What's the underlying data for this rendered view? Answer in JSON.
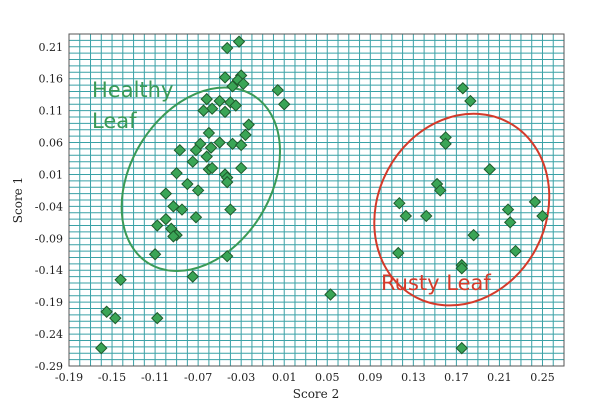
{
  "chart_data": {
    "type": "scatter",
    "xlabel": "Score 2",
    "ylabel": "Score 1",
    "xlim": [
      -0.19,
      0.27
    ],
    "ylim": [
      -0.29,
      0.23
    ],
    "x_ticks": [
      -0.19,
      -0.15,
      -0.11,
      -0.07,
      -0.03,
      0.01,
      0.05,
      0.09,
      0.13,
      0.17,
      0.21,
      0.25
    ],
    "y_ticks": [
      0.21,
      0.16,
      0.11,
      0.06,
      0.01,
      -0.04,
      -0.09,
      -0.14,
      -0.19,
      -0.24,
      -0.29
    ],
    "x_tick_labels": [
      "-0.19",
      "-0.15",
      "-0.11",
      "-0.07",
      "-0.03",
      "0.01",
      "0.05",
      "0.09",
      "0.13",
      "0.17",
      "0.21",
      "0.25"
    ],
    "y_tick_labels": [
      "0.21",
      "0.16",
      "0.11",
      "0.06",
      "0.01",
      "-0.04",
      "-0.09",
      "-0.14",
      "-0.19",
      "-0.24",
      "-0.29"
    ],
    "grid": true,
    "colors": {
      "point_fill": "#3aa556",
      "point_stroke": "#1e5a2c",
      "grid": "#3aa1a6",
      "healthy": "#3a9a56",
      "rusty": "#d43a2a"
    },
    "groups": [
      {
        "label_line1": "Healthy",
        "label_line2": "Leaf",
        "color": "#3a9a56",
        "ellipse": {
          "cx": -0.0675,
          "cy": 0.0025,
          "rx": 0.065,
          "ry": 0.155,
          "rotation_deg": 32
        }
      },
      {
        "label_line1": "Rusty Leaf",
        "label_line2": "",
        "color": "#d43a2a",
        "ellipse": {
          "cx": 0.175,
          "cy": -0.045,
          "rx": 0.078,
          "ry": 0.155,
          "rotation_deg": 28
        }
      }
    ],
    "points": [
      [
        -0.032,
        0.218
      ],
      [
        -0.043,
        0.208
      ],
      [
        -0.03,
        0.165
      ],
      [
        -0.045,
        0.162
      ],
      [
        -0.033,
        0.158
      ],
      [
        -0.028,
        0.152
      ],
      [
        -0.038,
        0.148
      ],
      [
        0.004,
        0.142
      ],
      [
        -0.062,
        0.128
      ],
      [
        -0.05,
        0.125
      ],
      [
        -0.04,
        0.123
      ],
      [
        0.01,
        0.12
      ],
      [
        -0.035,
        0.118
      ],
      [
        -0.057,
        0.113
      ],
      [
        -0.065,
        0.11
      ],
      [
        -0.045,
        0.108
      ],
      [
        -0.023,
        0.088
      ],
      [
        -0.026,
        0.072
      ],
      [
        -0.06,
        0.075
      ],
      [
        -0.05,
        0.06
      ],
      [
        -0.068,
        0.058
      ],
      [
        -0.038,
        0.058
      ],
      [
        -0.058,
        0.052
      ],
      [
        -0.072,
        0.048
      ],
      [
        -0.03,
        0.056
      ],
      [
        -0.062,
        0.038
      ],
      [
        -0.087,
        0.048
      ],
      [
        -0.075,
        0.03
      ],
      [
        -0.09,
        0.012
      ],
      [
        -0.06,
        0.018
      ],
      [
        -0.057,
        0.02
      ],
      [
        -0.03,
        0.02
      ],
      [
        -0.045,
        0.01
      ],
      [
        -0.043,
        0.005
      ],
      [
        -0.043,
        -0.002
      ],
      [
        -0.08,
        -0.005
      ],
      [
        -0.07,
        -0.015
      ],
      [
        -0.1,
        -0.02
      ],
      [
        -0.093,
        -0.04
      ],
      [
        -0.085,
        -0.045
      ],
      [
        -0.04,
        -0.045
      ],
      [
        -0.072,
        -0.057
      ],
      [
        -0.1,
        -0.06
      ],
      [
        -0.108,
        -0.07
      ],
      [
        -0.095,
        -0.075
      ],
      [
        -0.09,
        -0.085
      ],
      [
        -0.093,
        -0.087
      ],
      [
        -0.11,
        -0.115
      ],
      [
        -0.043,
        -0.118
      ],
      [
        -0.075,
        -0.15
      ],
      [
        -0.142,
        -0.155
      ],
      [
        -0.155,
        -0.205
      ],
      [
        -0.147,
        -0.215
      ],
      [
        -0.108,
        -0.215
      ],
      [
        -0.16,
        -0.262
      ],
      [
        0.053,
        -0.178
      ],
      [
        0.176,
        0.145
      ],
      [
        0.183,
        0.125
      ],
      [
        0.16,
        0.068
      ],
      [
        0.16,
        0.058
      ],
      [
        0.201,
        0.018
      ],
      [
        0.152,
        -0.005
      ],
      [
        0.155,
        -0.015
      ],
      [
        0.117,
        -0.035
      ],
      [
        0.243,
        -0.033
      ],
      [
        0.218,
        -0.045
      ],
      [
        0.123,
        -0.055
      ],
      [
        0.25,
        -0.055
      ],
      [
        0.142,
        -0.055
      ],
      [
        0.22,
        -0.065
      ],
      [
        0.186,
        -0.085
      ],
      [
        0.225,
        -0.11
      ],
      [
        0.116,
        -0.113
      ],
      [
        0.175,
        -0.132
      ],
      [
        0.175,
        -0.137
      ],
      [
        0.175,
        -0.262
      ]
    ]
  }
}
